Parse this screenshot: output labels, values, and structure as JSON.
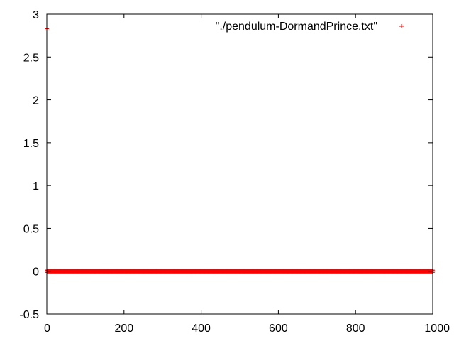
{
  "chart_data": {
    "type": "scatter",
    "title": "",
    "xlabel": "",
    "ylabel": "",
    "xlim": [
      0,
      1000
    ],
    "ylim": [
      -0.5,
      3
    ],
    "x_ticks": [
      0,
      200,
      400,
      600,
      800,
      1000
    ],
    "x_tick_labels": [
      "0",
      "200",
      "400",
      "600",
      "800",
      "1000"
    ],
    "y_ticks": [
      -0.5,
      0,
      0.5,
      1,
      1.5,
      2,
      2.5,
      3
    ],
    "y_tick_labels": [
      "-0.5",
      "0",
      "0.5",
      "1",
      "1.5",
      "2",
      "2.5",
      "3"
    ],
    "grid": false,
    "legend_position": "top-right",
    "series": [
      {
        "name": "\"./pendulum-DormandPrince.txt\"",
        "marker": "+",
        "color": "#ff0000",
        "initial_point": {
          "x": 0,
          "y": 2.83
        },
        "bulk_points": {
          "x_start": 0,
          "x_end": 1000,
          "count": 1001,
          "y": 0
        }
      }
    ]
  }
}
